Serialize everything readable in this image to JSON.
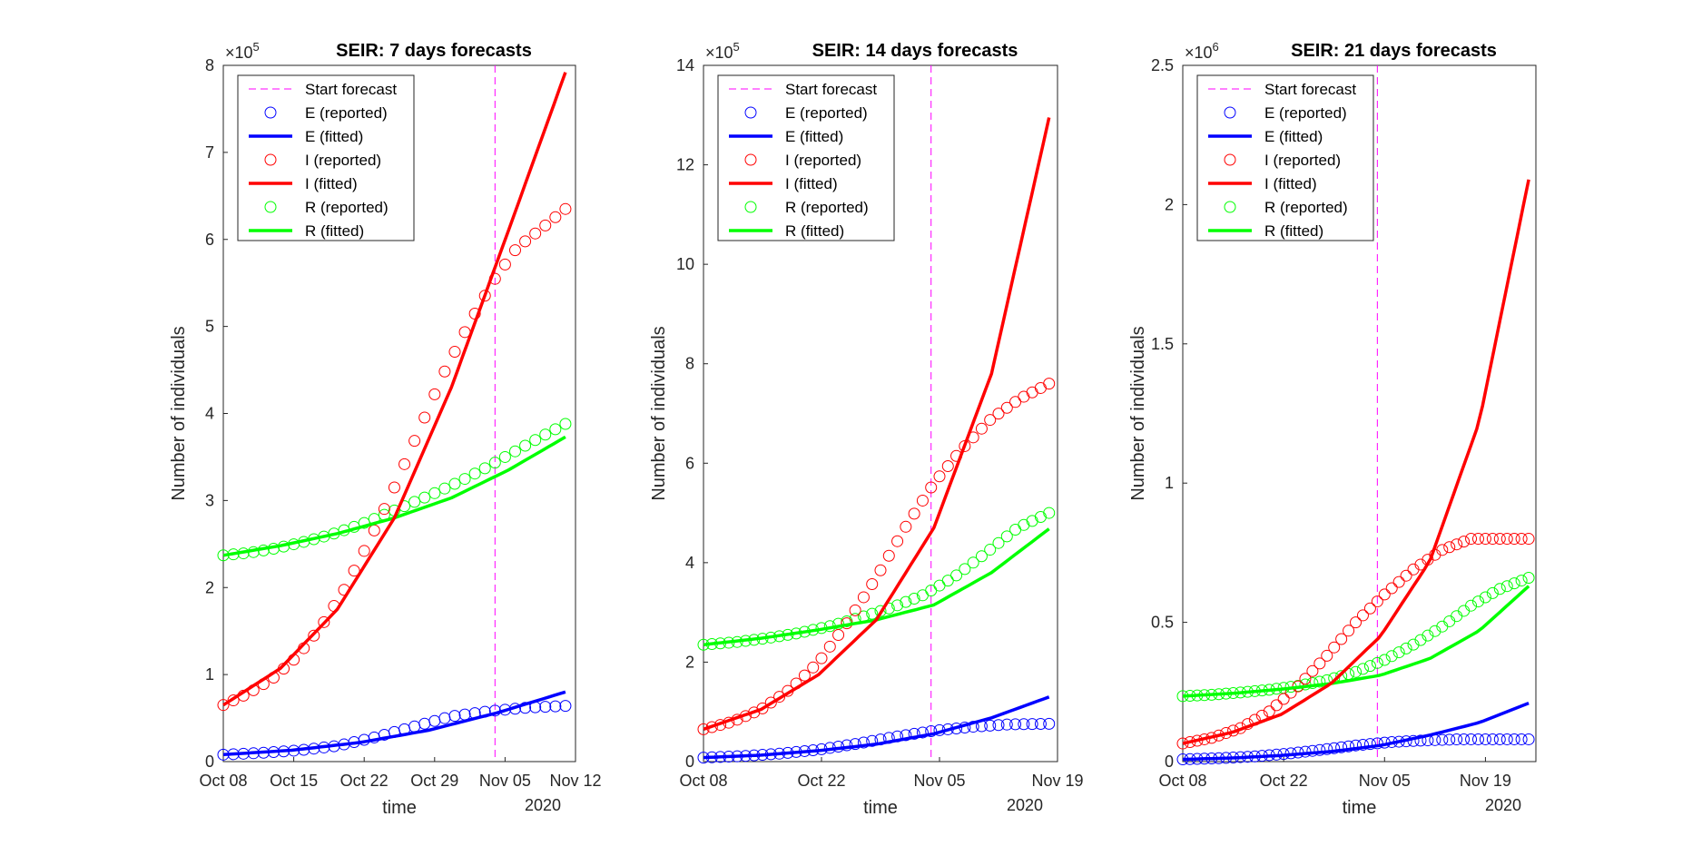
{
  "chart_data": [
    {
      "type": "line",
      "title": "SEIR: 7 days forecasts",
      "xlabel": "time",
      "ylabel": "Number of individuals",
      "year_label": "2020",
      "y_exponent": "5",
      "x_ticks": [
        {
          "date": "2020-10-08",
          "label": "Oct 08"
        },
        {
          "date": "2020-10-15",
          "label": "Oct 15"
        },
        {
          "date": "2020-10-22",
          "label": "Oct 22"
        },
        {
          "date": "2020-10-29",
          "label": "Oct 29"
        },
        {
          "date": "2020-11-05",
          "label": "Nov 05"
        },
        {
          "date": "2020-11-12",
          "label": "Nov 12"
        }
      ],
      "xlim": [
        "2020-10-08",
        "2020-11-12"
      ],
      "y_ticks": [
        0,
        1,
        2,
        3,
        4,
        5,
        6,
        7,
        8
      ],
      "ylim": [
        0,
        8
      ],
      "forecast_start": "2020-11-04",
      "legend": {
        "placement": "top-left",
        "entries": [
          "Start forecast",
          "E (reported)",
          "E (fitted)",
          "I (reported)",
          "I (fitted)",
          "R (reported)",
          "R (fitted)"
        ]
      },
      "reported_dates": {
        "start": "2020-10-08",
        "end": "2020-11-11",
        "count": 35
      },
      "fitted": {
        "E": {
          "start": "2020-10-08",
          "end": "2020-11-11",
          "values": [
            0.08,
            0.13,
            0.22,
            0.36,
            0.56,
            0.8
          ]
        },
        "I": {
          "start": "2020-10-08",
          "end": "2020-11-11",
          "values": [
            0.65,
            1.07,
            1.75,
            2.8,
            4.3,
            6.1,
            7.92
          ]
        },
        "R": {
          "start": "2020-10-08",
          "end": "2020-11-11",
          "values": [
            2.37,
            2.48,
            2.62,
            2.8,
            3.03,
            3.35,
            3.73
          ]
        }
      },
      "reported": {
        "E": [
          0.08,
          0.1,
          0.13,
          0.18,
          0.28,
          0.4,
          0.52,
          0.58,
          0.62,
          0.64
        ],
        "I": [
          0.65,
          0.78,
          0.95,
          1.2,
          1.55,
          2.0,
          2.55,
          3.15,
          3.8,
          4.45,
          5.0,
          5.5,
          5.9,
          6.12,
          6.35
        ],
        "R": [
          2.37,
          2.4,
          2.45,
          2.52,
          2.6,
          2.7,
          2.82,
          2.95,
          3.08,
          3.22,
          3.38,
          3.55,
          3.72,
          3.88
        ]
      }
    },
    {
      "type": "line",
      "title": "SEIR: 14 days forecasts",
      "xlabel": "time",
      "ylabel": "Number of individuals",
      "year_label": "2020",
      "y_exponent": "5",
      "x_ticks": [
        {
          "date": "2020-10-08",
          "label": "Oct 08"
        },
        {
          "date": "2020-10-22",
          "label": "Oct 22"
        },
        {
          "date": "2020-11-05",
          "label": "Nov 05"
        },
        {
          "date": "2020-11-19",
          "label": "Nov 19"
        }
      ],
      "xlim": [
        "2020-10-08",
        "2020-11-19"
      ],
      "y_ticks": [
        0,
        2,
        4,
        6,
        8,
        10,
        12,
        14
      ],
      "ylim": [
        0,
        14
      ],
      "forecast_start": "2020-11-04",
      "legend": {
        "placement": "top-left",
        "entries": [
          "Start forecast",
          "E (reported)",
          "E (fitted)",
          "I (reported)",
          "I (fitted)",
          "R (reported)",
          "R (fitted)"
        ]
      },
      "reported_dates": {
        "start": "2020-10-08",
        "end": "2020-11-18",
        "count": 42
      },
      "fitted": {
        "E": {
          "start": "2020-10-08",
          "end": "2020-11-18",
          "values": [
            0.08,
            0.13,
            0.22,
            0.35,
            0.56,
            0.88,
            1.3
          ]
        },
        "I": {
          "start": "2020-10-08",
          "end": "2020-11-18",
          "values": [
            0.65,
            1.05,
            1.75,
            2.85,
            4.7,
            7.8,
            12.95
          ]
        },
        "R": {
          "start": "2020-10-08",
          "end": "2020-11-18",
          "values": [
            2.35,
            2.48,
            2.65,
            2.85,
            3.15,
            3.8,
            4.68
          ]
        }
      },
      "reported": {
        "E": [
          0.08,
          0.11,
          0.16,
          0.24,
          0.36,
          0.5,
          0.62,
          0.7,
          0.75,
          0.76
        ],
        "I": [
          0.65,
          0.8,
          1.05,
          1.45,
          2.0,
          2.8,
          3.7,
          4.7,
          5.6,
          6.3,
          6.9,
          7.3,
          7.6
        ],
        "R": [
          2.35,
          2.4,
          2.48,
          2.58,
          2.72,
          2.9,
          3.1,
          3.35,
          3.72,
          4.2,
          4.7,
          5.0
        ]
      }
    },
    {
      "type": "line",
      "title": "SEIR: 21 days forecasts",
      "xlabel": "time",
      "ylabel": "Number of individuals",
      "year_label": "2020",
      "y_exponent": "6",
      "x_ticks": [
        {
          "date": "2020-10-08",
          "label": "Oct 08"
        },
        {
          "date": "2020-10-22",
          "label": "Oct 22"
        },
        {
          "date": "2020-11-05",
          "label": "Nov 05"
        },
        {
          "date": "2020-11-19",
          "label": "Nov 19"
        }
      ],
      "xlim": [
        "2020-10-08",
        "2020-11-26"
      ],
      "y_ticks": [
        0,
        0.5,
        1,
        1.5,
        2,
        2.5
      ],
      "y_tick_labels": [
        "0",
        "0.5",
        "1",
        "1.5",
        "2",
        "2.5"
      ],
      "ylim": [
        0,
        2.5
      ],
      "forecast_start": "2020-11-04",
      "legend": {
        "placement": "top-left",
        "entries": [
          "Start forecast",
          "E (reported)",
          "E (fitted)",
          "I (reported)",
          "I (fitted)",
          "R (reported)",
          "R (fitted)"
        ]
      },
      "reported_dates": {
        "start": "2020-10-08",
        "end": "2020-11-25",
        "count": 49
      },
      "fitted": {
        "E": {
          "start": "2020-10-08",
          "end": "2020-11-25",
          "values": [
            0.008,
            0.013,
            0.022,
            0.036,
            0.058,
            0.095,
            0.14,
            0.21
          ]
        },
        "I": {
          "start": "2020-10-08",
          "end": "2020-11-25",
          "values": [
            0.065,
            0.105,
            0.17,
            0.28,
            0.45,
            0.72,
            1.22,
            2.09
          ]
        },
        "R": {
          "start": "2020-10-08",
          "end": "2020-11-25",
          "values": [
            0.235,
            0.245,
            0.26,
            0.28,
            0.31,
            0.37,
            0.47,
            0.63
          ]
        }
      },
      "reported": {
        "E": [
          0.008,
          0.012,
          0.018,
          0.028,
          0.042,
          0.058,
          0.07,
          0.076,
          0.08,
          0.08,
          0.08
        ],
        "I": [
          0.065,
          0.085,
          0.12,
          0.18,
          0.27,
          0.38,
          0.5,
          0.6,
          0.69,
          0.76,
          0.8,
          0.8,
          0.8
        ],
        "R": [
          0.235,
          0.24,
          0.248,
          0.258,
          0.272,
          0.292,
          0.322,
          0.365,
          0.42,
          0.485,
          0.56,
          0.62,
          0.66
        ]
      }
    }
  ]
}
